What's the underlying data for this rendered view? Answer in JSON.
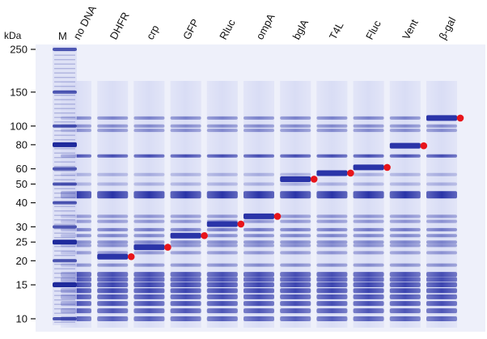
{
  "figure": {
    "unit_label": "kDa",
    "marker_label": "M",
    "lanes": [
      "no DNA",
      "DHFR",
      "crp",
      "GFP",
      "Rluc",
      "ompA",
      "bglA",
      "T4L",
      "Fluc",
      "Vent",
      "β-gal"
    ],
    "kda_ticks": [
      "250",
      "150",
      "100",
      "80",
      "60",
      "50",
      "40",
      "30",
      "25",
      "20",
      "15",
      "10"
    ],
    "colors": {
      "background": "#eef0fa",
      "band": "#2a34a8",
      "marker_band": "#1f2a9c",
      "dot": "#e8151b"
    }
  },
  "chart_data": {
    "type": "gel",
    "y_axis": "kDa (log scale)",
    "marker_kda": [
      250,
      150,
      100,
      80,
      60,
      50,
      40,
      30,
      25,
      20,
      15,
      10
    ],
    "expressed_protein_kda": [
      {
        "lane": "DHFR",
        "kda": 21
      },
      {
        "lane": "crp",
        "kda": 23.5
      },
      {
        "lane": "GFP",
        "kda": 27
      },
      {
        "lane": "Rluc",
        "kda": 31
      },
      {
        "lane": "ompA",
        "kda": 34
      },
      {
        "lane": "bglA",
        "kda": 53
      },
      {
        "lane": "T4L",
        "kda": 57
      },
      {
        "lane": "Fluc",
        "kda": 61
      },
      {
        "lane": "Vent",
        "kda": 79
      },
      {
        "lane": "β-gal",
        "kda": 110
      }
    ],
    "background_bands_kda": [
      110,
      100,
      95,
      70,
      56,
      50,
      44,
      34,
      32,
      29,
      27,
      25,
      24,
      22,
      19,
      17,
      16,
      15,
      14,
      13,
      12,
      11,
      10
    ]
  }
}
